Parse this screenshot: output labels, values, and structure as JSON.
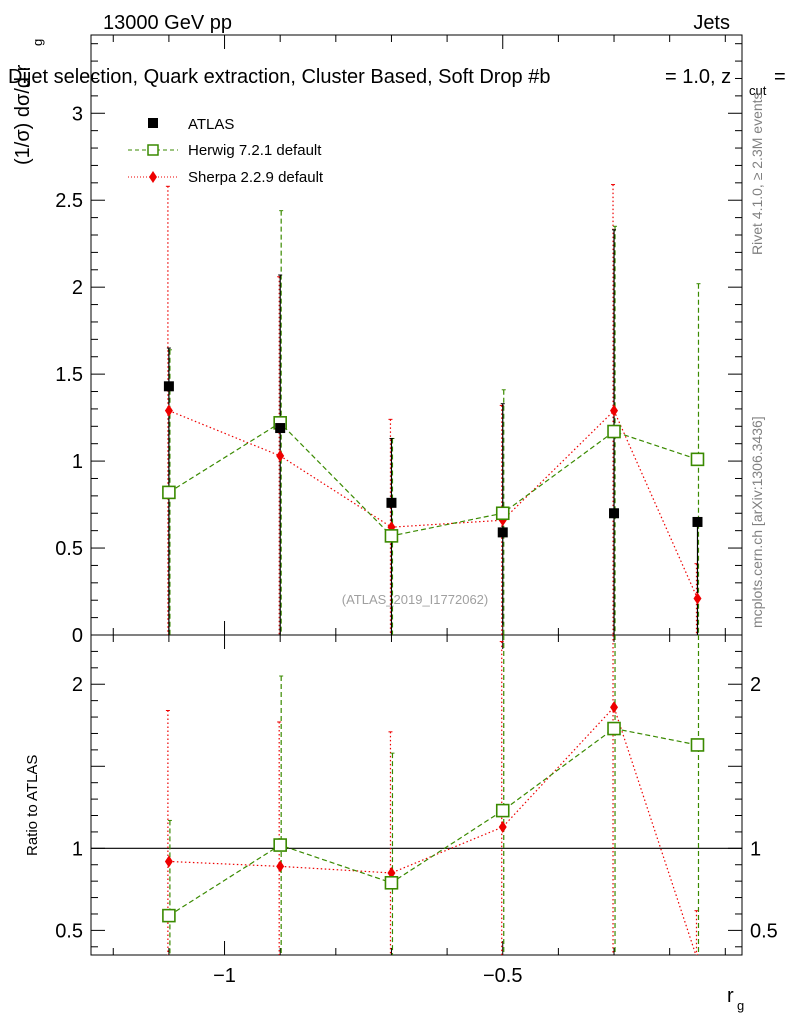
{
  "header": {
    "energy_label": "13000 GeV pp",
    "category_label": "Jets",
    "plot_title": "Dijet selection, Quark extraction, Cluster Based, Soft Drop #b",
    "beta_part": "= 1.0, z",
    "zcut_sub": "cut",
    "trailing_eq": "=",
    "side_rivet": "Rivet 4.1.0, ≥ 2.3M events",
    "side_mcplots": "mcplots.cern.ch [arXiv:1306.3436]",
    "watermark": "(ATLAS_2019_I1772062)"
  },
  "colors": {
    "atlas": "#000000",
    "herwig": "#3a8a00",
    "sherpa": "#ee0000"
  },
  "chart_data": [
    {
      "type": "scatter",
      "panel": "main",
      "ylabel": "(1/σ) dσ/d r",
      "ylabel_sub": "g",
      "ylim": [
        0,
        3.45
      ],
      "xlim": [
        -1.24,
        -0.07
      ],
      "yticks": [
        0,
        0.5,
        1,
        1.5,
        2,
        2.5,
        3
      ],
      "ytick_labels": [
        "0",
        "0.5",
        "1",
        "1.5",
        "2",
        "2.5",
        "3"
      ],
      "legend": {
        "position": "top-left",
        "entries": [
          "ATLAS",
          "Herwig 7.2.1 default",
          "Sherpa 2.2.9 default"
        ]
      },
      "x": [
        -1.1,
        -0.9,
        -0.7,
        -0.5,
        -0.3,
        -0.15
      ],
      "series": [
        {
          "name": "ATLAS",
          "values": [
            1.43,
            1.19,
            0.76,
            0.59,
            0.7,
            0.65
          ],
          "err_up": [
            1.65,
            2.07,
            1.13,
            1.33,
            2.33,
            0.65
          ],
          "err_down": [
            0,
            0,
            0,
            0.06,
            0,
            0
          ]
        },
        {
          "name": "Herwig 7.2.1 default",
          "values": [
            0.82,
            1.22,
            0.57,
            0.7,
            1.17,
            1.01
          ],
          "err_up": [
            1.64,
            2.44,
            1.13,
            1.41,
            2.35,
            2.02
          ],
          "err_down": [
            0,
            0,
            0,
            0,
            0,
            0
          ]
        },
        {
          "name": "Sherpa 2.2.9 default",
          "values": [
            1.29,
            1.03,
            0.62,
            0.66,
            1.29,
            0.21
          ],
          "err_up": [
            2.58,
            2.06,
            1.24,
            1.32,
            2.59,
            0.41
          ],
          "err_down": [
            0,
            0,
            0,
            0,
            0,
            0.01
          ]
        }
      ]
    },
    {
      "type": "scatter",
      "panel": "ratio",
      "ylabel": "Ratio to ATLAS",
      "xlabel": "r",
      "xlabel_sub": "g",
      "ylim": [
        0.35,
        2.3
      ],
      "xlim": [
        -1.24,
        -0.07
      ],
      "reference_line": 1,
      "yticks": [
        0.5,
        1,
        1.5,
        2
      ],
      "ytick_labels": [
        "0.5",
        "1",
        "",
        "2"
      ],
      "xticks": [
        -1,
        -0.5
      ],
      "xtick_labels": [
        "−1",
        "−0.5"
      ],
      "x": [
        -1.1,
        -0.9,
        -0.7,
        -0.5,
        -0.3,
        -0.15
      ],
      "series": [
        {
          "name": "Herwig 7.2.1 default",
          "values": [
            0.59,
            1.02,
            0.79,
            1.23,
            1.73,
            1.63
          ],
          "err_up": [
            1.17,
            2.05,
            1.58,
            2.38,
            3.4,
            3.4
          ],
          "err_down": [
            0,
            0,
            0,
            0,
            0,
            0
          ]
        },
        {
          "name": "Sherpa 2.2.9 default",
          "values": [
            0.92,
            0.89,
            0.85,
            1.13,
            1.86,
            0.32
          ],
          "err_up": [
            1.84,
            1.77,
            1.71,
            2.26,
            3.4,
            0.62
          ],
          "err_down": [
            0,
            0,
            0,
            0,
            0,
            0.01
          ]
        }
      ]
    }
  ]
}
